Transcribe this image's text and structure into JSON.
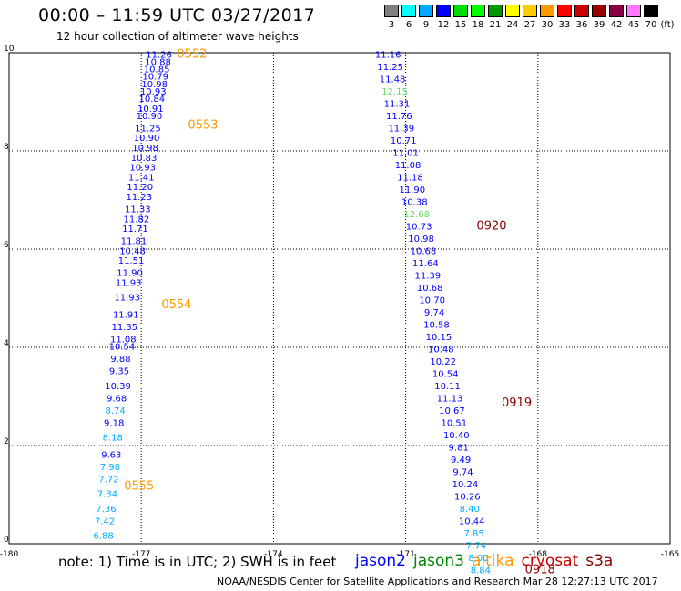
{
  "header": {
    "title": "00:00 – 11:59 UTC 03/27/2017",
    "subtitle": "12 hour collection of altimeter wave heights"
  },
  "color_scale": {
    "labels": [
      "3",
      "6",
      "9",
      "12",
      "15",
      "18",
      "21",
      "24",
      "27",
      "30",
      "33",
      "36",
      "39",
      "42",
      "45",
      "70"
    ],
    "unit_label": "(ft)",
    "colors": [
      "#808080",
      "#00ffff",
      "#00aaff",
      "#0000ff",
      "#00dd00",
      "#00ff00",
      "#009900",
      "#ffff00",
      "#ffcc00",
      "#ff9900",
      "#ff0000",
      "#cc0000",
      "#990000",
      "#880044",
      "#ff77ff",
      "#000000"
    ]
  },
  "footer": {
    "note": "note:  1) Time is in UTC;  2) SWH is in feet",
    "credit": "NOAA/NESDIS Center for Satellite Applications and Research    Mar 28 12:27:13 UTC 2017"
  },
  "legend": [
    {
      "name": "jason2",
      "color": "#0000ff"
    },
    {
      "name": "jason3",
      "color": "#008800"
    },
    {
      "name": "altika",
      "color": "#ff9900"
    },
    {
      "name": "cryosat",
      "color": "#cc0000"
    },
    {
      "name": "s3a",
      "color": "#880000"
    }
  ],
  "chart_data": {
    "type": "scatter",
    "xlim": [
      -180,
      -165
    ],
    "ylim": [
      0,
      10
    ],
    "x_ticks": [
      "-180",
      "-177",
      "-174",
      "-171",
      "-168",
      "-165"
    ],
    "y_ticks": [
      "0",
      "2",
      "4",
      "6",
      "8",
      "10"
    ],
    "grid": true,
    "value_colors": {
      "light": "#00aaff",
      "mid": "#0000ff",
      "green": "#66dd66",
      "time_orange": "#ff9900",
      "time_dark": "#880000"
    },
    "track_west": [
      {
        "x": -176.6,
        "y": 9.9,
        "v": "11.26"
      },
      {
        "x": -176.62,
        "y": 9.75,
        "v": "10.88"
      },
      {
        "x": -176.65,
        "y": 9.6,
        "v": "10.85"
      },
      {
        "x": -176.68,
        "y": 9.45,
        "v": "10.79"
      },
      {
        "x": -176.7,
        "y": 9.3,
        "v": "10.98"
      },
      {
        "x": -176.73,
        "y": 9.15,
        "v": "10.93"
      },
      {
        "x": -176.76,
        "y": 9.0,
        "v": "10.84"
      },
      {
        "x": -176.79,
        "y": 8.8,
        "v": "10.91"
      },
      {
        "x": -176.82,
        "y": 8.65,
        "v": "10.90"
      },
      {
        "x": -176.85,
        "y": 8.4,
        "v": "11.25"
      },
      {
        "x": -176.88,
        "y": 8.2,
        "v": "10.90"
      },
      {
        "x": -176.91,
        "y": 8.0,
        "v": "10.98"
      },
      {
        "x": -176.94,
        "y": 7.8,
        "v": "10.83"
      },
      {
        "x": -176.97,
        "y": 7.6,
        "v": "10.93"
      },
      {
        "x": -177.0,
        "y": 7.4,
        "v": "11.41"
      },
      {
        "x": -177.03,
        "y": 7.2,
        "v": "11.20"
      },
      {
        "x": -177.05,
        "y": 7.0,
        "v": "11.23"
      },
      {
        "x": -177.08,
        "y": 6.75,
        "v": "11.33"
      },
      {
        "x": -177.11,
        "y": 6.55,
        "v": "11.82"
      },
      {
        "x": -177.14,
        "y": 6.35,
        "v": "11.71"
      },
      {
        "x": -177.17,
        "y": 6.1,
        "v": "11.81"
      },
      {
        "x": -177.2,
        "y": 5.9,
        "v": "10.48"
      },
      {
        "x": -177.23,
        "y": 5.7,
        "v": "11.51"
      },
      {
        "x": -177.26,
        "y": 5.45,
        "v": "11.90"
      },
      {
        "x": -177.29,
        "y": 5.25,
        "v": "11.93"
      },
      {
        "x": -177.32,
        "y": 4.95,
        "v": "11.93"
      },
      {
        "x": -177.35,
        "y": 4.6,
        "v": "11.91"
      },
      {
        "x": -177.38,
        "y": 4.35,
        "v": "11.35"
      },
      {
        "x": -177.41,
        "y": 4.1,
        "v": "11.08"
      },
      {
        "x": -177.44,
        "y": 3.95,
        "v": "10.54"
      },
      {
        "x": -177.47,
        "y": 3.7,
        "v": "9.88"
      },
      {
        "x": -177.5,
        "y": 3.45,
        "v": "9.35"
      },
      {
        "x": -177.53,
        "y": 3.15,
        "v": "10.39"
      },
      {
        "x": -177.56,
        "y": 2.9,
        "v": "9.68"
      },
      {
        "x": -177.59,
        "y": 2.65,
        "v": "8.74"
      },
      {
        "x": -177.62,
        "y": 2.4,
        "v": "9.18"
      },
      {
        "x": -177.65,
        "y": 2.1,
        "v": "8.18"
      },
      {
        "x": -177.68,
        "y": 1.75,
        "v": "9.63"
      },
      {
        "x": -177.71,
        "y": 1.5,
        "v": "7.98"
      },
      {
        "x": -177.74,
        "y": 1.25,
        "v": "7.72"
      },
      {
        "x": -177.77,
        "y": 0.95,
        "v": "7.34"
      },
      {
        "x": -177.8,
        "y": 0.65,
        "v": "7.36"
      },
      {
        "x": -177.83,
        "y": 0.4,
        "v": "7.42"
      },
      {
        "x": -177.86,
        "y": 0.1,
        "v": "6.88"
      }
    ],
    "track_west_times": [
      {
        "x": -175.85,
        "y": 9.9,
        "v": "0552"
      },
      {
        "x": -175.6,
        "y": 8.45,
        "v": "0553"
      },
      {
        "x": -176.2,
        "y": 4.8,
        "v": "0554"
      },
      {
        "x": -177.05,
        "y": 1.1,
        "v": "0555"
      }
    ],
    "track_east": [
      {
        "x": -171.4,
        "y": 9.9,
        "v": "11.16"
      },
      {
        "x": -171.35,
        "y": 9.65,
        "v": "11.25"
      },
      {
        "x": -171.3,
        "y": 9.4,
        "v": "11.48"
      },
      {
        "x": -171.25,
        "y": 9.15,
        "v": "12.15"
      },
      {
        "x": -171.2,
        "y": 8.9,
        "v": "11.31"
      },
      {
        "x": -171.15,
        "y": 8.65,
        "v": "11.76"
      },
      {
        "x": -171.1,
        "y": 8.4,
        "v": "11.39"
      },
      {
        "x": -171.05,
        "y": 8.15,
        "v": "10.71"
      },
      {
        "x": -171.0,
        "y": 7.9,
        "v": "11.01"
      },
      {
        "x": -170.95,
        "y": 7.65,
        "v": "11.08"
      },
      {
        "x": -170.9,
        "y": 7.4,
        "v": "11.18"
      },
      {
        "x": -170.85,
        "y": 7.15,
        "v": "11.90"
      },
      {
        "x": -170.8,
        "y": 6.9,
        "v": "10.38"
      },
      {
        "x": -170.75,
        "y": 6.65,
        "v": "12.68"
      },
      {
        "x": -170.7,
        "y": 6.4,
        "v": "10.73"
      },
      {
        "x": -170.65,
        "y": 6.15,
        "v": "10.98"
      },
      {
        "x": -170.6,
        "y": 5.9,
        "v": "10.68"
      },
      {
        "x": -170.55,
        "y": 5.65,
        "v": "11.64"
      },
      {
        "x": -170.5,
        "y": 5.4,
        "v": "11.39"
      },
      {
        "x": -170.45,
        "y": 5.15,
        "v": "10.68"
      },
      {
        "x": -170.4,
        "y": 4.9,
        "v": "10.70"
      },
      {
        "x": -170.35,
        "y": 4.65,
        "v": "9.74"
      },
      {
        "x": -170.3,
        "y": 4.4,
        "v": "10.58"
      },
      {
        "x": -170.25,
        "y": 4.15,
        "v": "10.15"
      },
      {
        "x": -170.2,
        "y": 3.9,
        "v": "10.48"
      },
      {
        "x": -170.15,
        "y": 3.65,
        "v": "10.22"
      },
      {
        "x": -170.1,
        "y": 3.4,
        "v": "10.54"
      },
      {
        "x": -170.05,
        "y": 3.15,
        "v": "10.11"
      },
      {
        "x": -170.0,
        "y": 2.9,
        "v": "11.13"
      },
      {
        "x": -169.95,
        "y": 2.65,
        "v": "10.67"
      },
      {
        "x": -169.9,
        "y": 2.4,
        "v": "10.51"
      },
      {
        "x": -169.85,
        "y": 2.15,
        "v": "10.40"
      },
      {
        "x": -169.8,
        "y": 1.9,
        "v": "9.81"
      },
      {
        "x": -169.75,
        "y": 1.65,
        "v": "9.49"
      },
      {
        "x": -169.7,
        "y": 1.4,
        "v": "9.74"
      },
      {
        "x": -169.65,
        "y": 1.15,
        "v": "10.24"
      },
      {
        "x": -169.6,
        "y": 0.9,
        "v": "10.26"
      },
      {
        "x": -169.55,
        "y": 0.65,
        "v": "8.40"
      },
      {
        "x": -169.5,
        "y": 0.4,
        "v": "10.44"
      },
      {
        "x": -169.45,
        "y": 0.15,
        "v": "7.85"
      }
    ],
    "track_east_extra": [
      {
        "x": -169.4,
        "y": -0.1,
        "v": "7.74"
      },
      {
        "x": -169.35,
        "y": -0.35,
        "v": "8.00"
      },
      {
        "x": -169.3,
        "y": -0.6,
        "v": "8.84"
      }
    ],
    "track_east_times": [
      {
        "x": -169.05,
        "y": 6.4,
        "v": "0920"
      },
      {
        "x": -168.48,
        "y": 2.8,
        "v": "0919"
      },
      {
        "x": -167.95,
        "y": -0.6,
        "v": "0918"
      }
    ]
  }
}
